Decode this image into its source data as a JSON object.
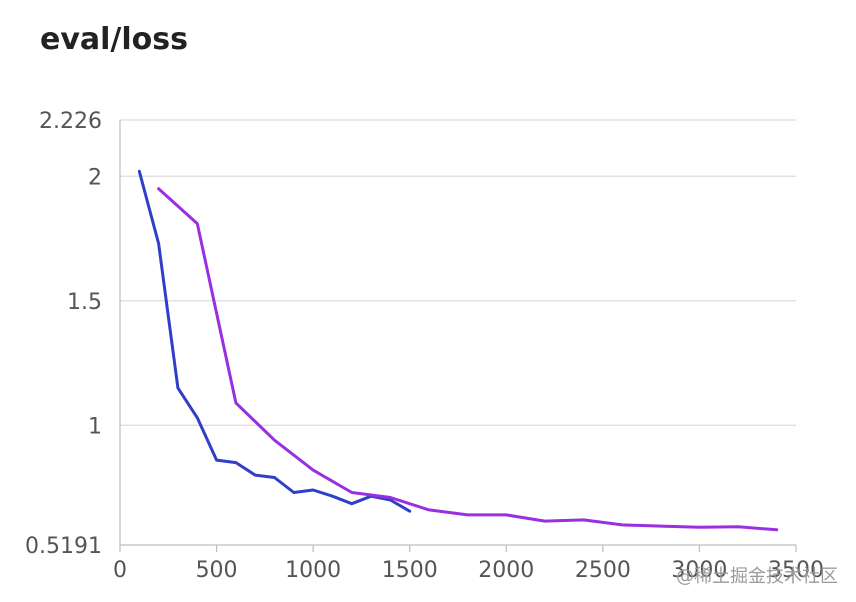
{
  "chart_data": {
    "type": "line",
    "title": "eval/loss",
    "xlabel": "",
    "ylabel": "",
    "xlim": [
      0,
      3500
    ],
    "ylim": [
      0.5191,
      2.226
    ],
    "x_ticks": [
      0,
      500,
      1000,
      1500,
      2000,
      2500,
      3000,
      3500
    ],
    "x_tick_labels": [
      "0",
      "500",
      "1000",
      "1500",
      "2000",
      "2500",
      "3000",
      "3500"
    ],
    "y_ticks": [
      0.5191,
      1,
      1.5,
      2,
      2.226
    ],
    "y_tick_labels": [
      "0.5191",
      "1",
      "1.5",
      "2",
      "2.226"
    ],
    "grid": true,
    "series": [
      {
        "color": "#2f3fc8",
        "x": [
          100,
          200,
          300,
          400,
          500,
          600,
          700,
          800,
          900,
          1000,
          1100,
          1200,
          1300,
          1400,
          1500
        ],
        "y": [
          2.02,
          1.73,
          1.15,
          1.03,
          0.86,
          0.85,
          0.8,
          0.79,
          0.73,
          0.74,
          0.715,
          0.685,
          0.715,
          0.7,
          0.655
        ]
      },
      {
        "color": "#9a2fe0",
        "x": [
          200,
          400,
          600,
          800,
          1000,
          1200,
          1400,
          1600,
          1800,
          2000,
          2200,
          2400,
          2600,
          2800,
          3000,
          3200,
          3400
        ],
        "y": [
          1.95,
          1.81,
          1.09,
          0.94,
          0.82,
          0.73,
          0.71,
          0.66,
          0.64,
          0.64,
          0.615,
          0.62,
          0.6,
          0.595,
          0.59,
          0.592,
          0.58
        ]
      }
    ]
  },
  "watermark": "@稀土掘金技术社区"
}
